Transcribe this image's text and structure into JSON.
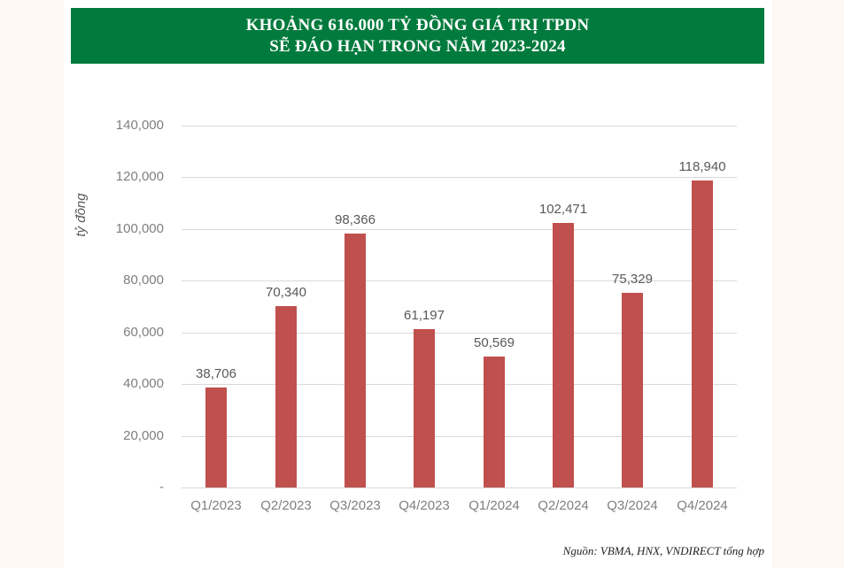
{
  "banner": {
    "line1": "KHOẢNG 616.000 TỶ ĐỒNG GIÁ TRỊ TPDN",
    "line2": "SẼ ĐÁO HẠN TRONG NĂM 2023-2024"
  },
  "colors": {
    "banner_bg": "#007a3d",
    "bar": "#c0504d",
    "grid": "#d9d9d9",
    "page_bg": "#fdf8f4"
  },
  "source": "Nguồn: VBMA, HNX, VNDIRECT tổng hợp",
  "chart_data": {
    "type": "bar",
    "title": "KHOẢNG 616.000 TỶ ĐỒNG GIÁ TRỊ TPDN SẼ ĐÁO HẠN TRONG NĂM 2023-2024",
    "xlabel": "",
    "ylabel": "tỷ đồng",
    "categories": [
      "Q1/2023",
      "Q2/2023",
      "Q3/2023",
      "Q4/2023",
      "Q1/2024",
      "Q2/2024",
      "Q3/2024",
      "Q4/2024"
    ],
    "values": [
      38706,
      70340,
      98366,
      61197,
      50569,
      102471,
      75329,
      118940
    ],
    "value_labels": [
      "38,706",
      "70,340",
      "98,366",
      "61,197",
      "50,569",
      "102,471",
      "75,329",
      "118,940"
    ],
    "ylim": [
      0,
      140000
    ],
    "yticks": [
      0,
      20000,
      40000,
      60000,
      80000,
      100000,
      120000,
      140000
    ],
    "ytick_labels": [
      "-",
      "20,000",
      "40,000",
      "60,000",
      "80,000",
      "100,000",
      "120,000",
      "140,000"
    ],
    "grid": true,
    "legend": null,
    "source": "Nguồn: VBMA, HNX, VNDIRECT tổng hợp"
  }
}
